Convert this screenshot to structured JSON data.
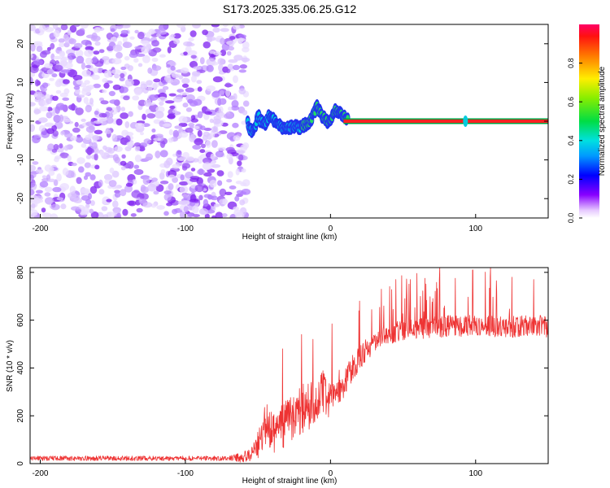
{
  "title": "S173.2025.335.06.25.G12",
  "chart_data": [
    {
      "type": "heatmap",
      "xlabel": "Height of straight line (km)",
      "ylabel": "Frequency (Hz)",
      "xlim": [
        -207,
        150
      ],
      "ylim": [
        -25,
        25
      ],
      "xticks": [
        -200,
        -100,
        0,
        100
      ],
      "xtick_labels": [
        "-200",
        "-100",
        "0",
        "100"
      ],
      "yticks": [
        -20,
        -10,
        0,
        10,
        20
      ],
      "ytick_labels": [
        "-20",
        "-10",
        "0",
        "10",
        "20"
      ],
      "colorbar": {
        "label": "Normalized spectral amplitude",
        "range": [
          0,
          1
        ],
        "ticks": [
          0.0,
          0.2,
          0.4,
          0.6,
          0.8
        ],
        "tick_labels": [
          "0.0",
          "0.2",
          "0.4",
          "0.6",
          "0.8"
        ]
      },
      "noise_region": {
        "x": [
          -207,
          -58
        ],
        "y": [
          -25,
          25
        ]
      },
      "signal_track": [
        {
          "x": -57,
          "y": -0.5
        },
        {
          "x": -55,
          "y": -2.5
        },
        {
          "x": -52,
          "y": -1.5
        },
        {
          "x": -50,
          "y": 1.5
        },
        {
          "x": -48,
          "y": 0
        },
        {
          "x": -45,
          "y": -1
        },
        {
          "x": -42,
          "y": 1.5
        },
        {
          "x": -40,
          "y": 0.5
        },
        {
          "x": -37,
          "y": -0.5
        },
        {
          "x": -33,
          "y": -1.5
        },
        {
          "x": -30,
          "y": -2
        },
        {
          "x": -27,
          "y": -1.5
        },
        {
          "x": -24,
          "y": -1.5
        },
        {
          "x": -21,
          "y": -1.5
        },
        {
          "x": -18,
          "y": -1
        },
        {
          "x": -14,
          "y": 0
        },
        {
          "x": -11,
          "y": 2.5
        },
        {
          "x": -9,
          "y": 4
        },
        {
          "x": -7,
          "y": 2
        },
        {
          "x": -4,
          "y": 0.5
        },
        {
          "x": -1,
          "y": -0.5
        },
        {
          "x": 3,
          "y": 3
        },
        {
          "x": 6,
          "y": 2.5
        },
        {
          "x": 9,
          "y": 1.5
        },
        {
          "x": 12,
          "y": 0.5
        },
        {
          "x": 15,
          "y": 0.3
        },
        {
          "x": 20,
          "y": 0.2
        },
        {
          "x": 30,
          "y": 0.1
        },
        {
          "x": 150,
          "y": 0
        }
      ],
      "carrier_line": {
        "x": [
          12,
          150
        ],
        "y": 0,
        "amplitude": 0.92
      },
      "isolated_blip": {
        "x": 93,
        "y": 0,
        "amplitude": 0.5
      }
    },
    {
      "type": "line",
      "xlabel": "Height of straight line (km)",
      "ylabel": "SNR (10 * v/v)",
      "xlim": [
        -207,
        150
      ],
      "ylim": [
        0,
        820
      ],
      "xticks": [
        -200,
        -100,
        0,
        100
      ],
      "xtick_labels": [
        "-200",
        "-100",
        "0",
        "100"
      ],
      "yticks": [
        0,
        200,
        400,
        600,
        800
      ],
      "ytick_labels": [
        "0",
        "200",
        "400",
        "600",
        "800"
      ],
      "series": [
        {
          "name": "SNR",
          "color": "#ee3333",
          "x": [
            -207,
            -150,
            -100,
            -70,
            -55,
            -48,
            -45,
            -42,
            -40,
            -35,
            -30,
            -25,
            -20,
            -15,
            -10,
            -5,
            0,
            5,
            10,
            15,
            20,
            25,
            30,
            40,
            50,
            60,
            70,
            80,
            90,
            100,
            110,
            120,
            130,
            140,
            150
          ],
          "values": [
            22,
            22,
            22,
            22,
            30,
            100,
            170,
            160,
            120,
            150,
            170,
            200,
            220,
            250,
            280,
            300,
            260,
            320,
            340,
            400,
            440,
            480,
            510,
            540,
            560,
            565,
            570,
            575,
            575,
            580,
            575,
            570,
            575,
            580,
            570
          ],
          "noise": [
            10,
            10,
            10,
            10,
            30,
            70,
            90,
            90,
            80,
            90,
            100,
            110,
            110,
            110,
            100,
            90,
            80,
            70,
            60,
            55,
            50,
            50,
            45,
            45,
            45,
            45,
            45,
            45,
            45,
            45,
            45,
            45,
            45,
            45,
            45
          ],
          "spike_peaks": [
            {
              "x": -33,
              "y": 480
            },
            {
              "x": -20,
              "y": 540
            },
            {
              "x": -12,
              "y": 520
            },
            {
              "x": 1,
              "y": 585
            },
            {
              "x": 20,
              "y": 680
            },
            {
              "x": 35,
              "y": 730
            },
            {
              "x": 45,
              "y": 770
            },
            {
              "x": 55,
              "y": 770
            },
            {
              "x": 65,
              "y": 775
            },
            {
              "x": 75,
              "y": 770
            },
            {
              "x": 86,
              "y": 775
            },
            {
              "x": 98,
              "y": 810
            },
            {
              "x": 110,
              "y": 780
            },
            {
              "x": 125,
              "y": 780
            },
            {
              "x": 140,
              "y": 770
            }
          ]
        }
      ]
    }
  ]
}
